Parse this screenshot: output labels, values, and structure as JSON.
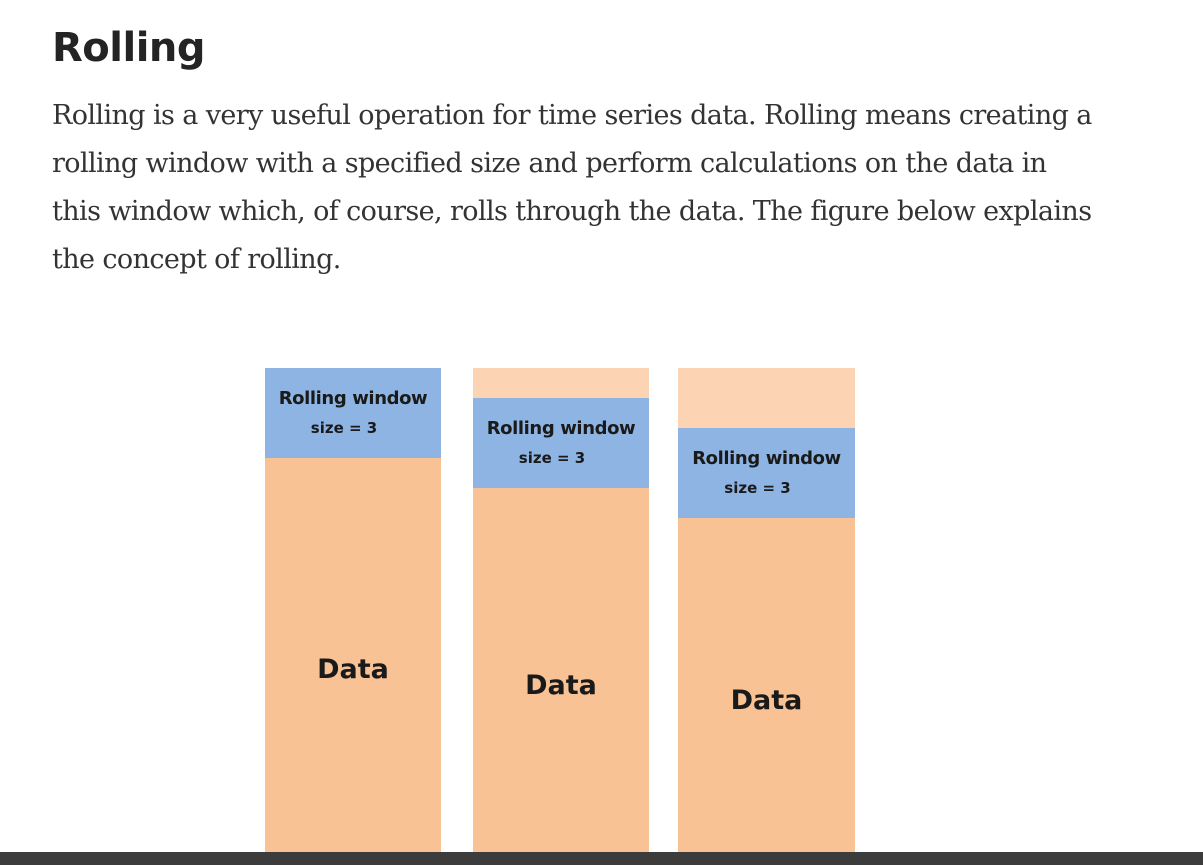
{
  "article": {
    "heading": "Rolling",
    "paragraph": "Rolling is a very useful operation for time series data. Rolling means creating a rolling window with a specified size and perform calculations on the data in this window which, of course, rolls through the data. The figure below explains the concept of rolling."
  },
  "figure": {
    "columns": [
      {
        "window_title": "Rolling window",
        "window_size": "size = 3",
        "data_label": "Data"
      },
      {
        "window_title": "Rolling window",
        "window_size": "size = 3",
        "data_label": "Data"
      },
      {
        "window_title": "Rolling window",
        "window_size": "size = 3",
        "data_label": "Data"
      }
    ],
    "colors": {
      "data": "#f9c295",
      "data_rolled_past": "#fcd4b3",
      "window": "#8eb4e3"
    }
  }
}
